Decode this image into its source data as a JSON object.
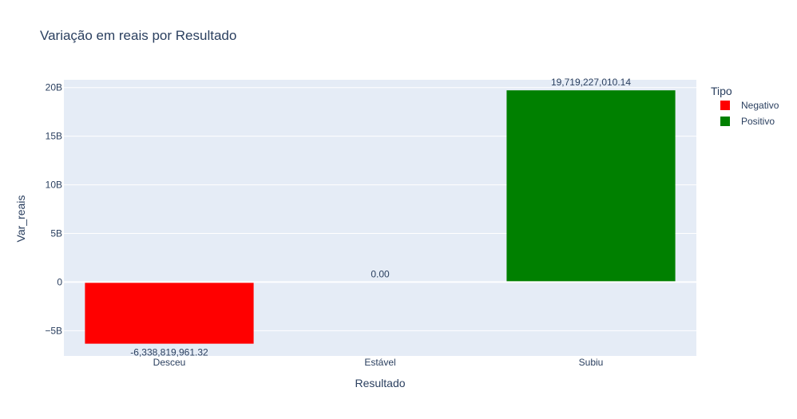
{
  "chart_data": {
    "type": "bar",
    "title": "Variação em reais por Resultado",
    "xlabel": "Resultado",
    "ylabel": "Var_reais",
    "categories": [
      "Desceu",
      "Estável",
      "Subiu"
    ],
    "ylim": [
      -7600000000,
      20800000000
    ],
    "yticks": [
      {
        "value": -5000000000,
        "label": "−5B"
      },
      {
        "value": 0,
        "label": "0"
      },
      {
        "value": 5000000000,
        "label": "5B"
      },
      {
        "value": 10000000000,
        "label": "10B"
      },
      {
        "value": 15000000000,
        "label": "15B"
      },
      {
        "value": 20000000000,
        "label": "20B"
      }
    ],
    "grid": true,
    "legend": {
      "title": "Tipo",
      "placement": "top-right",
      "items": [
        {
          "name": "Negativo",
          "color": "#ff0000"
        },
        {
          "name": "Positivo",
          "color": "#008000"
        }
      ]
    },
    "bars": [
      {
        "category": "Desceu",
        "value": -6338819961.32,
        "label": "-6,338,819,961.32",
        "tipo": "Negativo",
        "color": "#ff0000"
      },
      {
        "category": "Estável",
        "value": 0,
        "label": "0.00",
        "tipo": "Positivo",
        "color": "#008000"
      },
      {
        "category": "Subiu",
        "value": 19719227010.14,
        "label": "19,719,227,010.14",
        "tipo": "Positivo",
        "color": "#008000"
      }
    ],
    "colors": {
      "plot_bg": "#e5ecf6",
      "grid": "#ffffff",
      "text": "#2a3f5f"
    }
  }
}
